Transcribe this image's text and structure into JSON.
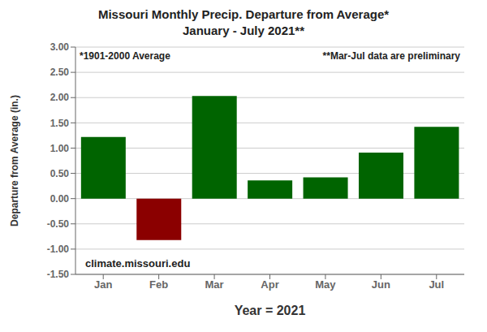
{
  "chart_data": {
    "type": "bar",
    "title": "Missouri Monthly Precip. Departure from Average*",
    "subtitle": "January - July 2021**",
    "xlabel": "Year = 2021",
    "ylabel": "Departure from Average (in.)",
    "categories": [
      "Jan",
      "Feb",
      "Mar",
      "Apr",
      "May",
      "Jun",
      "Jul"
    ],
    "values": [
      1.22,
      -0.82,
      2.03,
      0.36,
      0.42,
      0.91,
      1.42
    ],
    "colors": [
      "#006400",
      "#8B0000",
      "#006400",
      "#006400",
      "#006400",
      "#006400",
      "#006400"
    ],
    "ylim": [
      -1.5,
      3.0
    ],
    "yticks": [
      {
        "value": -1.5,
        "label": "-1.50"
      },
      {
        "value": -1.0,
        "label": "-1.00"
      },
      {
        "value": -0.5,
        "label": "-0.50"
      },
      {
        "value": 0,
        "label": "0.00"
      },
      {
        "value": 0.5,
        "label": "0.50"
      },
      {
        "value": 1.0,
        "label": "1.00"
      },
      {
        "value": 1.5,
        "label": "1.50"
      },
      {
        "value": 2.0,
        "label": "2.00"
      },
      {
        "value": 2.5,
        "label": "2.50"
      },
      {
        "value": 3.0,
        "label": "3.00"
      }
    ],
    "grid": true,
    "annotations": [
      "*1901-2000 Average",
      "**Mar-Jul data are preliminary",
      "climate.missouri.edu"
    ]
  }
}
